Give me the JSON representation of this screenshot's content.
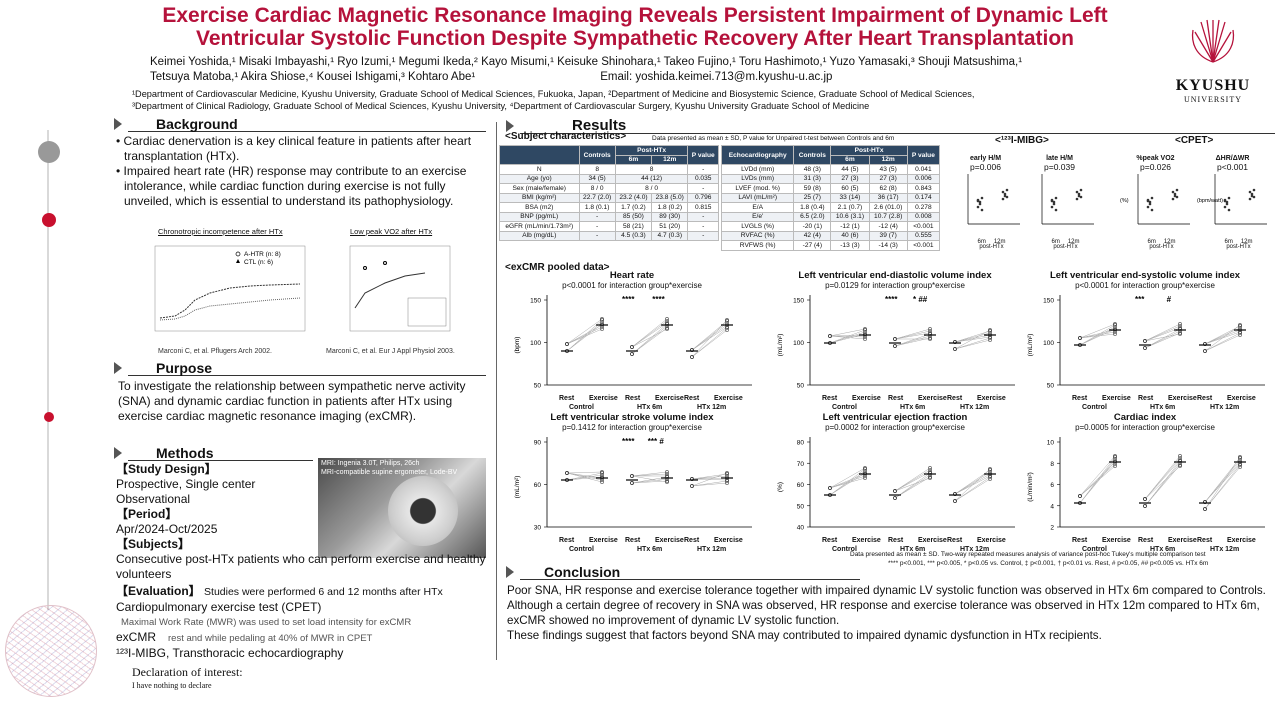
{
  "title": "Exercise Cardiac Magnetic Resonance Imaging Reveals Persistent Impairment of Dynamic Left Ventricular Systolic Function Despite Sympathetic Recovery After Heart Transplantation",
  "authors_line1": "Keimei Yoshida,¹ Misaki Imbayashi,¹ Ryo Izumi,¹ Megumi Ikeda,² Kayo Misumi,¹ Keisuke Shinohara,¹ Takeo Fujino,¹ Toru Hashimoto,¹ Yuzo Yamasaki,³ Shouji Matsushima,¹",
  "authors_line2": "Tetsuya Matoba,¹ Akira Shiose,⁴ Kousei Ishigami,³ Kohtaro Abe¹",
  "email": "Email: yoshida.keimei.713@m.kyushu-u.ac.jp",
  "affil1": "¹Department of Cardiovascular Medicine, Kyushu University, Graduate School of Medical Sciences, Fukuoka, Japan, ²Department of Medicine and Biosystemic Science, Graduate School of Medical Sciences,",
  "affil2": "³Department of Clinical Radiology, Graduate School of Medical Sciences, Kyushu University, ⁴Department of Cardiovascular Surgery, Kyushu University Graduate School of Medicine",
  "logo": {
    "name": "KYUSHU",
    "sub": "UNIVERSITY"
  },
  "background": {
    "heading": "Background",
    "bullets": [
      "Cardiac denervation is a key clinical feature in patients after heart transplantation (HTx).",
      "Impaired heart rate (HR) response may contribute to an exercise intolerance, while cardiac function during exercise is not fully unveiled, which is essential to understand its pathophysiology."
    ],
    "fig1_title": "Chronotropic incompetence after HTx",
    "fig1_legend1": "A-HTR (n: 8)",
    "fig1_legend2": "CTL (n: 6)",
    "fig1_cite": "Marconi C, et al. Pflugers Arch 2002.",
    "fig2_title": "Low peak VO2 after HTx",
    "fig2_cite": "Marconi C, et al. Eur J Appl Physiol 2003."
  },
  "purpose": {
    "heading": "Purpose",
    "text": "To investigate the relationship between sympathetic nerve activity (SNA) and dynamic cardiac function in patients after HTx using exercise cardiac magnetic resonance imaging (exCMR)."
  },
  "methods": {
    "heading": "Methods",
    "study_design_h": "【Study Design】",
    "study_design": [
      "Prospective, Single center",
      "Observational"
    ],
    "period_h": "【Period】",
    "period": "Apr/2024-Oct/2025",
    "subjects_h": "【Subjects】",
    "subjects": "Consecutive post-HTx patients who can perform exercise and healthy volunteers",
    "evaluation_h": "【Evaluation】",
    "evaluation": "Studies were performed 6 and 12 months after HTx",
    "cpet": "Cardiopulmonary exercise test (CPET)",
    "mwr": "Maximal Work Rate (MWR) was used to set load intensity for exCMR",
    "excmr_h": "exCMR",
    "excmr": "rest and while pedaling at 40% of MWR in CPET",
    "mibg": "¹²³I-MIBG, Transthoracic echocardiography",
    "mri_caption1": "MRI: Ingenia 3.0T, Philips, 26ch",
    "mri_caption2": "MRI-compatible supine ergometer, Lode-BV"
  },
  "declaration": {
    "heading": "Declaration of interest:",
    "text": "I have nothing to declare"
  },
  "results": {
    "heading": "Results",
    "subject_h": "<Subject characteristics>",
    "subject_note": "Data presented as mean ± SD, P value for Unpaired t-test between Controls and 6m",
    "t1_head": [
      "",
      "Controls",
      "Post-HTx",
      "P value"
    ],
    "t1_sub": [
      "6m",
      "12m"
    ],
    "t1_rows": [
      [
        "N",
        "8",
        "8",
        "",
        "-"
      ],
      [
        "Age (yo)",
        "34 (5)",
        "44 (12)",
        "",
        "0.035"
      ],
      [
        "Sex (male/female)",
        "8 / 0",
        "8 / 0",
        "",
        "-"
      ],
      [
        "BMI (kg/m²)",
        "22.7 (2.0)",
        "23.2 (4.0)",
        "23.8 (5.0)",
        "0.796"
      ],
      [
        "BSA (m2)",
        "1.8 (0.1)",
        "1.7 (0.2)",
        "1.8 (0.2)",
        "0.815"
      ],
      [
        "BNP (pg/mL)",
        "-",
        "85 (50)",
        "89 (30)",
        "-"
      ],
      [
        "eGFR (mL/min/1.73m²)",
        "-",
        "58 (21)",
        "51 (20)",
        "-"
      ],
      [
        "Alb (mg/dL)",
        "-",
        "4.5 (0.3)",
        "4.7 (0.3)",
        "-"
      ]
    ],
    "t2_head": [
      "Echocardiography",
      "Controls",
      "Post-HTx",
      "P value"
    ],
    "t2_rows": [
      [
        "LVDd (mm)",
        "48 (3)",
        "44 (5)",
        "43 (5)",
        "0.041"
      ],
      [
        "LVDs (mm)",
        "31 (3)",
        "27 (3)",
        "27 (3)",
        "0.006"
      ],
      [
        "LVEF (mod. %)",
        "59 (8)",
        "60 (5)",
        "62 (8)",
        "0.843"
      ],
      [
        "LAVI (mL/m²)",
        "25 (7)",
        "33 (14)",
        "36 (17)",
        "0.174"
      ],
      [
        "E/A",
        "1.8 (0.4)",
        "2.1 (0.7)",
        "2.6 (01.0)",
        "0.278"
      ],
      [
        "E/e'",
        "6.5 (2.0)",
        "10.6 (3.1)",
        "10.7 (2.8)",
        "0.008"
      ],
      [
        "LVGLS (%)",
        "-20 (1)",
        "-12 (1)",
        "-12 (4)",
        "<0.001"
      ],
      [
        "RVFAC (%)",
        "42 (4)",
        "40 (6)",
        "39 (7)",
        "0.555"
      ],
      [
        "RVFWS (%)",
        "-27 (4)",
        "-13 (3)",
        "-14 (3)",
        "<0.001"
      ]
    ],
    "mibg_h": "<¹²³I-MIBG>",
    "cpet_h": "<CPET>",
    "small_plots": [
      {
        "t": "early H/M",
        "p": "p=0.006",
        "y": ""
      },
      {
        "t": "late H/M",
        "p": "p=0.039",
        "y": ""
      },
      {
        "t": "%peak VO2",
        "p": "p=0.026",
        "y": "(%)"
      },
      {
        "t": "ΔHR/ΔWR",
        "p": "p<0.001",
        "y": "(bpm/watt)"
      }
    ],
    "small_xlabels": [
      "6m",
      "12m",
      "post-HTx"
    ],
    "excmr_h": "<exCMR pooled data>",
    "plots": [
      {
        "t": "Heart rate",
        "p": "p<0.0001 for interaction group*exercise",
        "y": "(bpm)",
        "ticks": [
          "50",
          "100",
          "150"
        ],
        "stars": "****        ****"
      },
      {
        "t": "Left ventricular end-diastolic volume index",
        "p": "p=0.0129 for interaction group*exercise",
        "y": "(mL/m²)",
        "ticks": [
          "50",
          "100",
          "150"
        ],
        "stars": "****       * ##"
      },
      {
        "t": "Left ventricular end-systolic volume index",
        "p": "p<0.0001 for interaction group*exercise",
        "y": "(mL/m²)",
        "ticks": [
          "50",
          "100",
          "150"
        ],
        "stars": "***          #"
      },
      {
        "t": "Left ventricular stroke volume index",
        "p": "p=0.1412 for interaction group*exercise",
        "y": "(mL/m²)",
        "ticks": [
          "30",
          "60",
          "90"
        ],
        "stars": "****      *** #"
      },
      {
        "t": "Left ventricular ejection fraction",
        "p": "p=0.0002 for interaction group*exercise",
        "y": "(%)",
        "ticks": [
          "40",
          "50",
          "60",
          "70",
          "80"
        ],
        "stars": ""
      },
      {
        "t": "Cardiac index",
        "p": "p=0.0005 for interaction group*exercise",
        "y": "(L/min/m²)",
        "ticks": [
          "2",
          "4",
          "6",
          "8",
          "10"
        ],
        "stars": ""
      }
    ],
    "xl_top": [
      "Rest",
      "Exercise",
      "Rest",
      "Exercise",
      "Rest",
      "Exercise"
    ],
    "xl_bot": [
      "Control",
      "HTx 6m",
      "HTx 12m"
    ],
    "foot1": "Data presented as mean ± SD. Two-way repeated measures analysis of variance post-hoc Tukey's multiple comparison test",
    "foot2": "**** p<0.001, *** p<0.005, * p<0.05 vs. Control, ‡ p<0.001, † p<0.01 vs. Rest, # p<0.05, ## p<0.005 vs. HTx 6m"
  },
  "conclusion": {
    "heading": "Conclusion",
    "paras": [
      "Poor SNA, HR response and exercise tolerance together with impaired dynamic LV systolic function was observed in HTx 6m compared to Controls.",
      "Although a certain degree of recovery in SNA was observed, HR response and exercise tolerance was observed in HTx 12m compared to HTx 6m, exCMR showed no improvement of dynamic LV systolic function.",
      "These findings suggest that factors beyond SNA may contributed to impaired dynamic dysfunction in HTx recipients."
    ]
  },
  "colors": {
    "title": "#b5123b",
    "table_head": "#2f4863"
  }
}
